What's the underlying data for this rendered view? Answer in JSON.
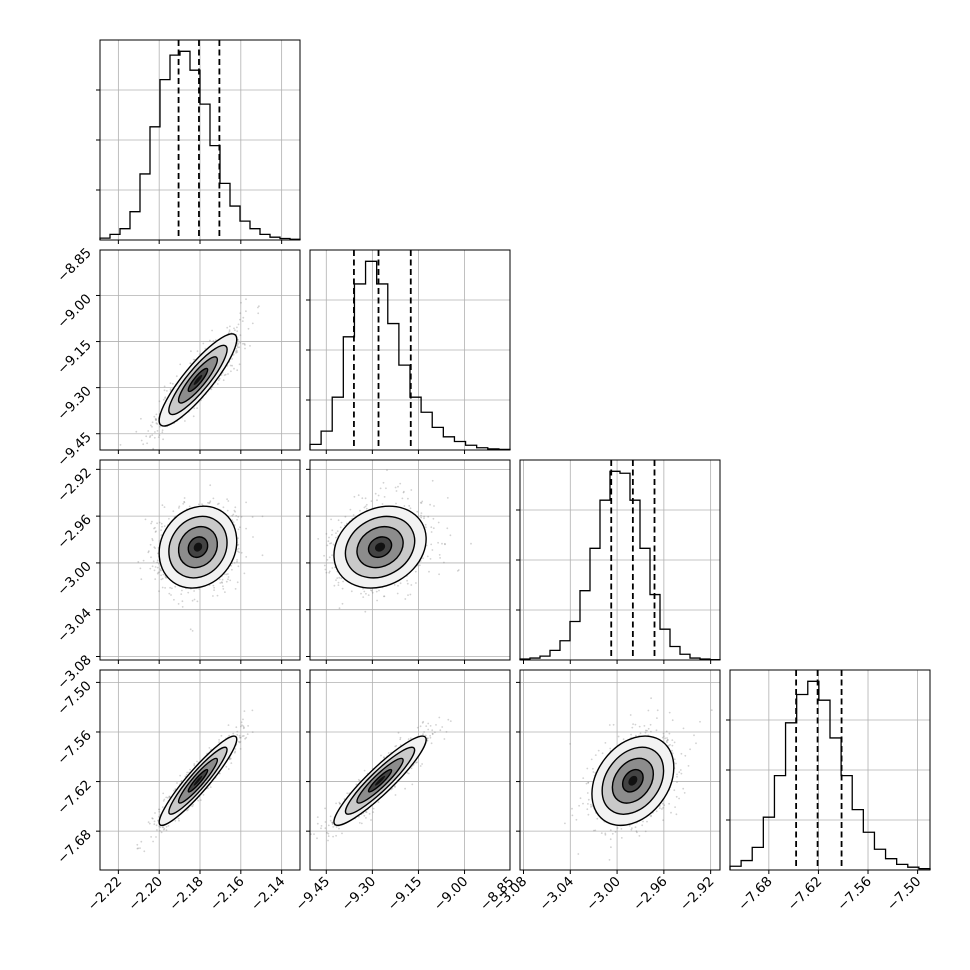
{
  "chart_data": {
    "type": "corner",
    "grid": true,
    "parameters": [
      {
        "range": [
          -2.229,
          -2.131
        ],
        "ticks": [
          "−2.22",
          "−2.20",
          "−2.18",
          "−2.16",
          "−2.14"
        ],
        "tick_values": [
          -2.22,
          -2.2,
          -2.18,
          -2.16,
          -2.14
        ],
        "quantiles": [
          -2.1905,
          -2.1805,
          -2.1705
        ],
        "mean": -2.181,
        "sd": 0.0095,
        "histogram": [
          0.01,
          0.03,
          0.06,
          0.15,
          0.35,
          0.6,
          0.85,
          0.98,
          1.0,
          0.9,
          0.72,
          0.5,
          0.3,
          0.18,
          0.1,
          0.06,
          0.03,
          0.015,
          0.008,
          0.004
        ]
      },
      {
        "range": [
          -9.503,
          -8.852
        ],
        "ticks": [
          "−9.45",
          "−9.30",
          "−9.15",
          "−9.00",
          "−8.85"
        ],
        "tick_values": [
          -9.45,
          -9.3,
          -9.15,
          -9.0,
          -8.85
        ],
        "quantiles": [
          -9.36,
          -9.28,
          -9.175
        ],
        "mean": -9.275,
        "sd": 0.075,
        "histogram": [
          0.03,
          0.1,
          0.28,
          0.6,
          0.88,
          1.0,
          0.88,
          0.67,
          0.45,
          0.28,
          0.2,
          0.12,
          0.07,
          0.045,
          0.025,
          0.012,
          0.006,
          0.003
        ]
      },
      {
        "range": [
          -3.083,
          -2.912
        ],
        "ticks": [
          "−3.08",
          "−3.04",
          "−3.00",
          "−2.96",
          "−2.92"
        ],
        "tick_values": [
          -3.08,
          -3.04,
          -3.0,
          -2.96,
          -2.92
        ],
        "quantiles": [
          -3.005,
          -2.9865,
          -2.968
        ],
        "mean": -2.9865,
        "sd": 0.0175,
        "histogram": [
          0.005,
          0.01,
          0.02,
          0.05,
          0.1,
          0.2,
          0.36,
          0.58,
          0.83,
          0.98,
          0.97,
          0.83,
          0.58,
          0.34,
          0.16,
          0.07,
          0.03,
          0.01,
          0.005,
          0.002
        ]
      },
      {
        "range": [
          -7.727,
          -7.485
        ],
        "ticks": [
          "−7.68",
          "−7.62",
          "−7.56",
          "−7.50"
        ],
        "tick_values": [
          -7.68,
          -7.62,
          -7.56,
          -7.5
        ],
        "quantiles": [
          -7.647,
          -7.621,
          -7.592
        ],
        "mean": -7.619,
        "sd": 0.027,
        "histogram": [
          0.02,
          0.05,
          0.12,
          0.28,
          0.5,
          0.78,
          0.93,
          1.0,
          0.9,
          0.7,
          0.5,
          0.32,
          0.2,
          0.11,
          0.06,
          0.03,
          0.015,
          0.007
        ]
      }
    ],
    "correlations": {
      "1-0": 0.88,
      "2-0": 0.15,
      "2-1": 0.2,
      "3-0": 0.93,
      "3-1": 0.92,
      "3-2": 0.3
    },
    "contour_levels_sigma": [
      0.5,
      1.0,
      1.5,
      2.0
    ]
  }
}
